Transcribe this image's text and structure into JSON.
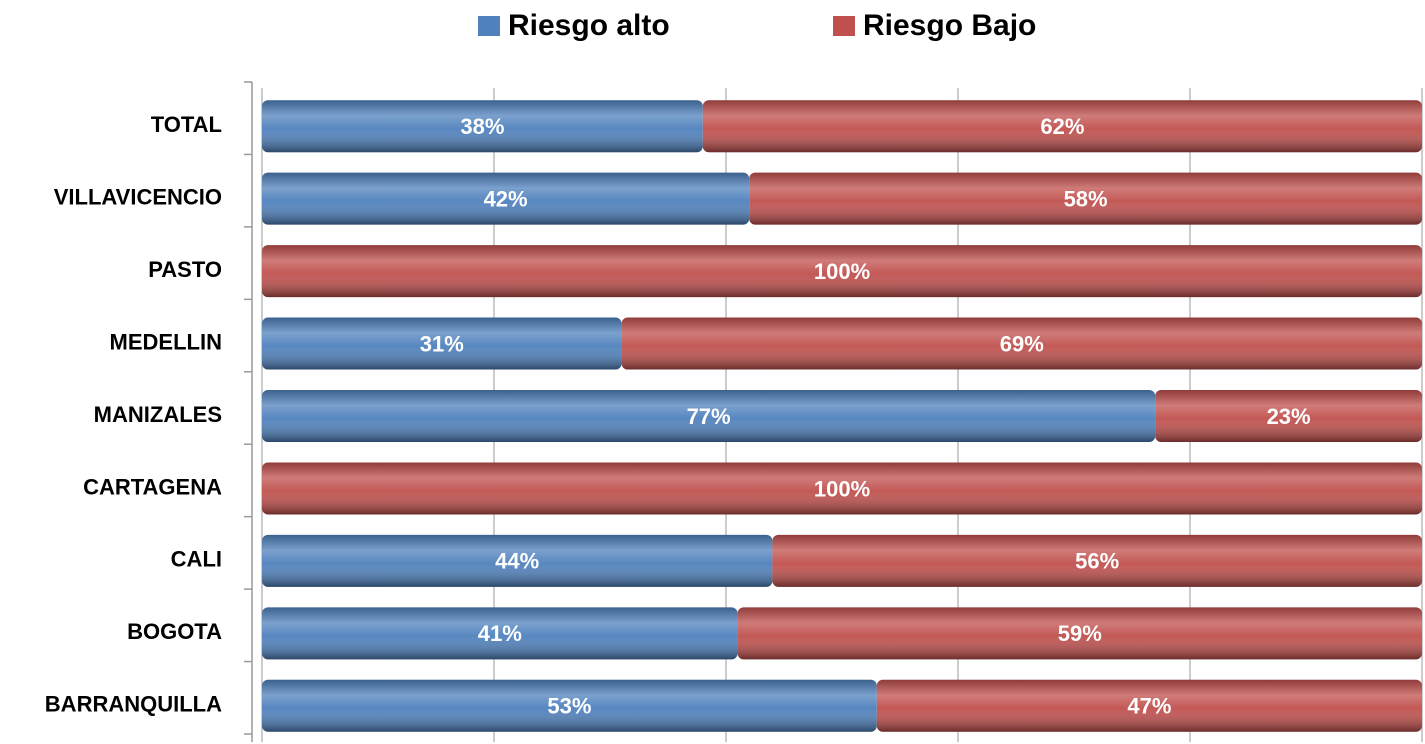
{
  "chart_data": {
    "type": "stacked-bar-horizontal",
    "categories": [
      "TOTAL",
      "VILLAVICENCIO",
      "PASTO",
      "MEDELLIN",
      "MANIZALES",
      "CARTAGENA",
      "CALI",
      "BOGOTA",
      "BARRANQUILLA"
    ],
    "series": [
      {
        "name": "Riesgo alto",
        "color": "#4f81bd",
        "values": [
          38,
          42,
          0,
          31,
          77,
          0,
          44,
          41,
          53
        ],
        "value_labels": [
          "38%",
          "42%",
          null,
          "31%",
          "77%",
          null,
          "44%",
          "41%",
          "53%"
        ]
      },
      {
        "name": "Riesgo Bajo",
        "color": "#c0504d",
        "values": [
          62,
          58,
          100,
          69,
          23,
          100,
          56,
          59,
          47
        ],
        "value_labels": [
          "62%",
          "58%",
          "100%",
          "69%",
          "23%",
          "100%",
          "56%",
          "59%",
          "47%"
        ]
      }
    ],
    "xlim": [
      0,
      100
    ],
    "xticks": [
      0,
      20,
      40,
      60,
      80,
      100
    ],
    "grid": true,
    "legend": "top"
  }
}
